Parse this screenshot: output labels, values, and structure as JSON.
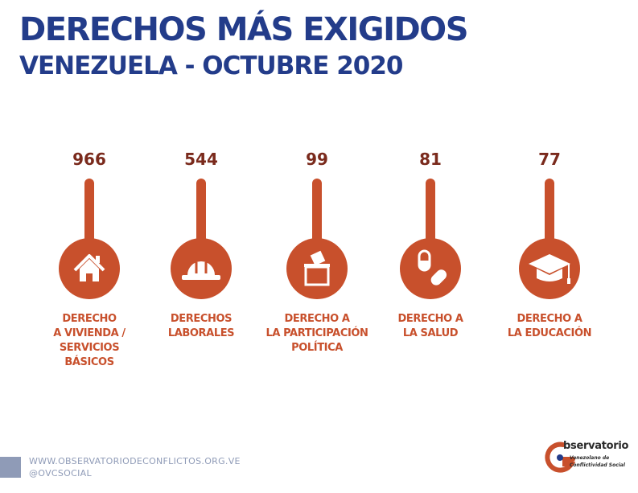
{
  "title": "DERECHOS MÁS EXIGIDOS",
  "subtitle": "VENEZUELA - OCTUBRE 2020",
  "chart_data": {
    "type": "bar",
    "categories": [
      "DERECHO\nA VIVIENDA /\nSERVICIOS\nBÁSICOS",
      "DERECHOS\nLABORALES",
      "DERECHO A\nLA PARTICIPACIÓN\nPOLÍTICA",
      "DERECHO A\nLA SALUD",
      "DERECHO A\nLA EDUCACIÓN"
    ],
    "values": [
      966,
      544,
      99,
      81,
      77
    ],
    "value_labels": [
      "966",
      "544",
      "99",
      "81",
      "77"
    ],
    "icons": [
      "house-icon",
      "hard-hat-icon",
      "ballot-box-icon",
      "pills-icon",
      "graduation-cap-icon"
    ],
    "title": "DERECHOS MÁS EXIGIDOS",
    "xlabel": "",
    "ylabel": "",
    "grid": false,
    "legend": "none"
  },
  "colors": {
    "title": "#233c8a",
    "accent": "#c8502c",
    "value_text": "#7a2a1c",
    "footer": "#8f9bb7"
  },
  "footer": {
    "website": "WWW.OBSERVATORIODECONFLICTOS.ORG.VE",
    "handle": "@OVCSOCIAL"
  },
  "logo": {
    "name": "bservatorio",
    "line1": "Venezolano de",
    "line2": "Conflictividad Social"
  }
}
